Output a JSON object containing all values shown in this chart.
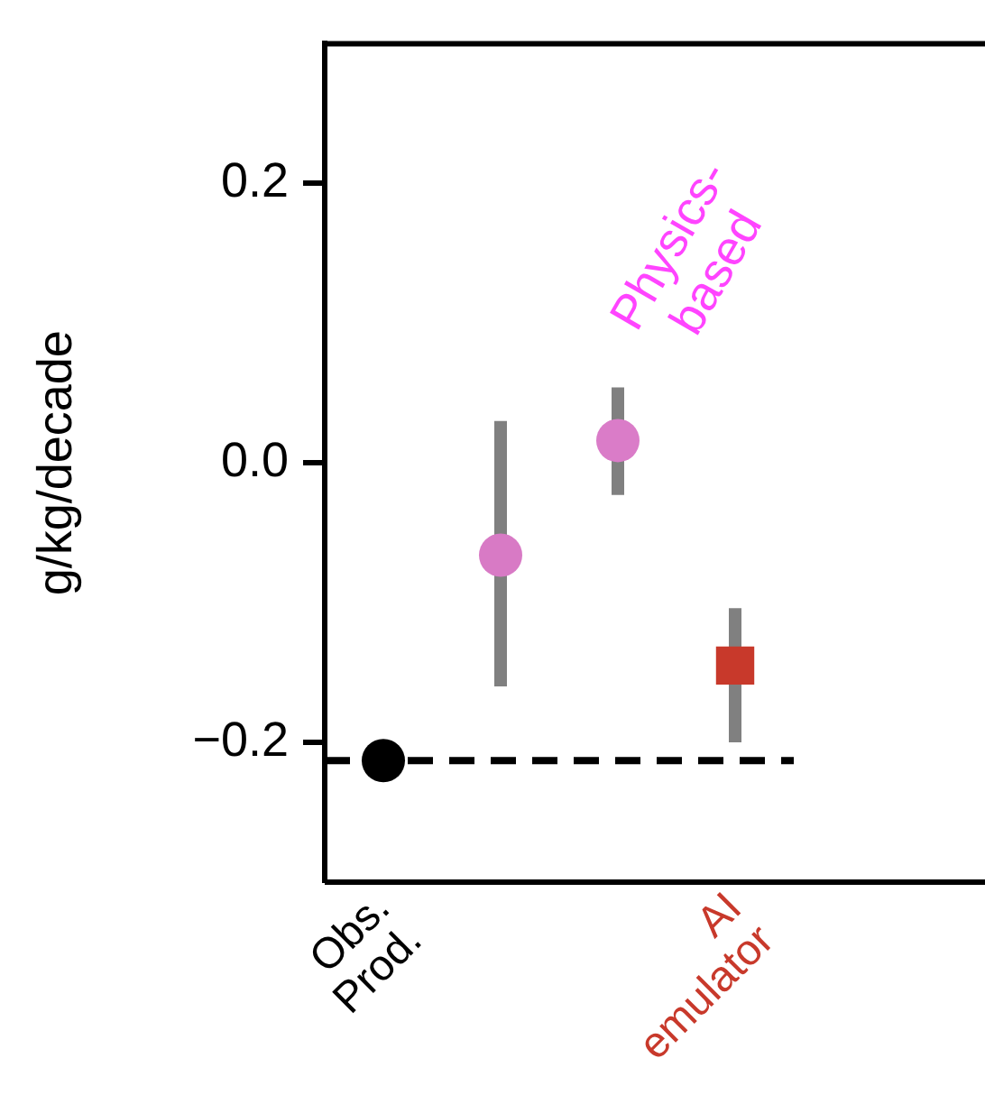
{
  "chart_data": {
    "type": "scatter",
    "ylabel": "g/kg/decade",
    "ylim": [
      -0.3,
      0.3
    ],
    "categories": [
      "Obs. Prod.",
      null,
      null,
      "AI emulator"
    ],
    "yticks": [
      {
        "value": -0.2,
        "label": "−0.2"
      },
      {
        "value": 0,
        "label": "0.0"
      },
      {
        "value": 0.2,
        "label": "0.2"
      }
    ],
    "series": [
      {
        "values": [
          -0.213,
          null,
          null,
          null
        ],
        "color": "#000000",
        "marker": "circle"
      },
      {
        "values": [
          null,
          -0.066,
          null,
          null
        ],
        "errors": [
          null,
          [
            -0.16,
            0.03
          ],
          null,
          null
        ],
        "color": "#d87ac5",
        "marker": "circle"
      },
      {
        "values": [
          null,
          null,
          0.016,
          null
        ],
        "errors": [
          null,
          null,
          [
            -0.023,
            0.054
          ],
          null
        ],
        "color": "#da7cc8",
        "marker": "circle"
      },
      {
        "values": [
          null,
          null,
          null,
          -0.145
        ],
        "errors": [
          null,
          null,
          null,
          [
            -0.2,
            -0.104
          ]
        ],
        "color": "#c8392b",
        "marker": "square"
      }
    ],
    "ref_lines": [
      {
        "axis": "y",
        "value": -0.213,
        "color": "#000000",
        "line_style": "dashed"
      }
    ],
    "annotations": [
      "Physics-based"
    ],
    "grid": false,
    "legend": false
  }
}
